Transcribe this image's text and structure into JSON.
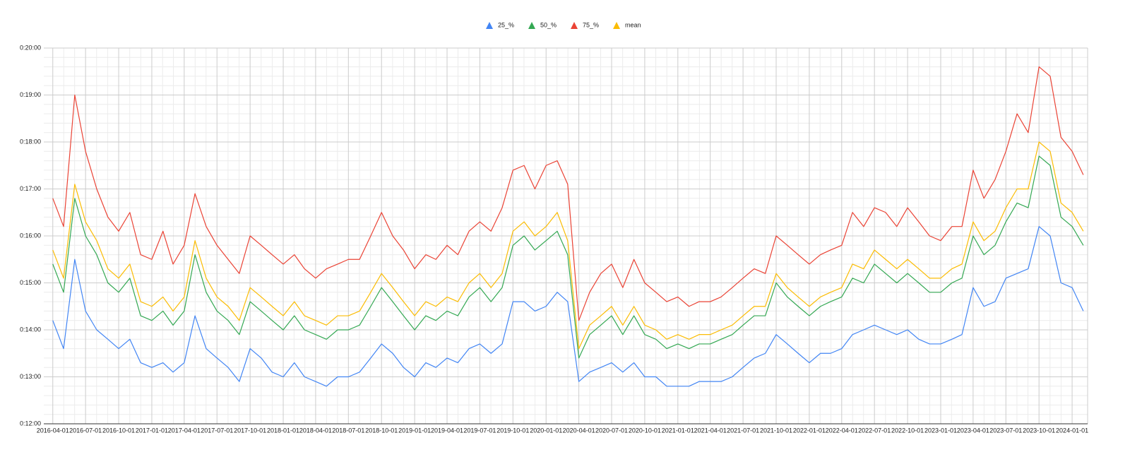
{
  "chart_data": {
    "type": "line",
    "x": [
      "2016-04-01",
      "2016-05-01",
      "2016-06-01",
      "2016-07-01",
      "2016-08-01",
      "2016-09-01",
      "2016-10-01",
      "2016-11-01",
      "2016-12-01",
      "2017-01-01",
      "2017-02-01",
      "2017-03-01",
      "2017-04-01",
      "2017-05-01",
      "2017-06-01",
      "2017-07-01",
      "2017-08-01",
      "2017-09-01",
      "2017-10-01",
      "2017-11-01",
      "2017-12-01",
      "2018-01-01",
      "2018-02-01",
      "2018-03-01",
      "2018-04-01",
      "2018-05-01",
      "2018-06-01",
      "2018-07-01",
      "2018-08-01",
      "2018-09-01",
      "2018-10-01",
      "2018-11-01",
      "2018-12-01",
      "2019-01-01",
      "2019-02-01",
      "2019-03-01",
      "2019-04-01",
      "2019-05-01",
      "2019-06-01",
      "2019-07-01",
      "2019-08-01",
      "2019-09-01",
      "2019-10-01",
      "2019-11-01",
      "2019-12-01",
      "2020-01-01",
      "2020-02-01",
      "2020-03-01",
      "2020-04-01",
      "2020-05-01",
      "2020-06-01",
      "2020-07-01",
      "2020-08-01",
      "2020-09-01",
      "2020-10-01",
      "2020-11-01",
      "2020-12-01",
      "2021-01-01",
      "2021-02-01",
      "2021-03-01",
      "2021-04-01",
      "2021-05-01",
      "2021-06-01",
      "2021-07-01",
      "2021-08-01",
      "2021-09-01",
      "2021-10-01",
      "2021-11-01",
      "2021-12-01",
      "2022-01-01",
      "2022-02-01",
      "2022-03-01",
      "2022-04-01",
      "2022-05-01",
      "2022-06-01",
      "2022-07-01",
      "2022-08-01",
      "2022-09-01",
      "2022-10-01",
      "2022-11-01",
      "2022-12-01",
      "2023-01-01",
      "2023-02-01",
      "2023-03-01",
      "2023-04-01",
      "2023-05-01",
      "2023-06-01",
      "2023-07-01",
      "2023-08-01",
      "2023-09-01",
      "2023-10-01",
      "2023-11-01",
      "2023-12-01",
      "2024-01-01",
      "2024-02-01"
    ],
    "series": [
      {
        "name": "25_%",
        "color": "#4285f4",
        "values": [
          14.2,
          13.6,
          15.5,
          14.4,
          14.0,
          13.8,
          13.6,
          13.8,
          13.3,
          13.2,
          13.3,
          13.1,
          13.3,
          14.3,
          13.6,
          13.4,
          13.2,
          12.9,
          13.6,
          13.4,
          13.1,
          13.0,
          13.3,
          13.0,
          12.9,
          12.8,
          13.0,
          13.0,
          13.1,
          13.4,
          13.7,
          13.5,
          13.2,
          13.0,
          13.3,
          13.2,
          13.4,
          13.3,
          13.6,
          13.7,
          13.5,
          13.7,
          14.6,
          14.6,
          14.4,
          14.5,
          14.8,
          14.6,
          12.9,
          13.1,
          13.2,
          13.3,
          13.1,
          13.3,
          13.0,
          13.0,
          12.8,
          12.8,
          12.8,
          12.9,
          12.9,
          12.9,
          13.0,
          13.2,
          13.4,
          13.5,
          13.9,
          13.7,
          13.5,
          13.3,
          13.5,
          13.5,
          13.6,
          13.9,
          14.0,
          14.1,
          14.0,
          13.9,
          14.0,
          13.8,
          13.7,
          13.7,
          13.8,
          13.9,
          14.9,
          14.5,
          14.6,
          15.1,
          15.2,
          15.3,
          16.2,
          16.0,
          15.0,
          14.9,
          14.4
        ]
      },
      {
        "name": "50_%",
        "color": "#34a853",
        "values": [
          15.4,
          14.8,
          16.8,
          16.0,
          15.6,
          15.0,
          14.8,
          15.1,
          14.3,
          14.2,
          14.4,
          14.1,
          14.4,
          15.6,
          14.8,
          14.4,
          14.2,
          13.9,
          14.6,
          14.4,
          14.2,
          14.0,
          14.3,
          14.0,
          13.9,
          13.8,
          14.0,
          14.0,
          14.1,
          14.5,
          14.9,
          14.6,
          14.3,
          14.0,
          14.3,
          14.2,
          14.4,
          14.3,
          14.7,
          14.9,
          14.6,
          14.9,
          15.8,
          16.0,
          15.7,
          15.9,
          16.1,
          15.6,
          13.4,
          13.9,
          14.1,
          14.3,
          13.9,
          14.3,
          13.9,
          13.8,
          13.6,
          13.7,
          13.6,
          13.7,
          13.7,
          13.8,
          13.9,
          14.1,
          14.3,
          14.3,
          15.0,
          14.7,
          14.5,
          14.3,
          14.5,
          14.6,
          14.7,
          15.1,
          15.0,
          15.4,
          15.2,
          15.0,
          15.2,
          15.0,
          14.8,
          14.8,
          15.0,
          15.1,
          16.0,
          15.6,
          15.8,
          16.3,
          16.7,
          16.6,
          17.7,
          17.5,
          16.4,
          16.2,
          15.8
        ]
      },
      {
        "name": "75_%",
        "color": "#ea4335",
        "values": [
          16.8,
          16.2,
          19.0,
          17.8,
          17.0,
          16.4,
          16.1,
          16.5,
          15.6,
          15.5,
          16.1,
          15.4,
          15.8,
          16.9,
          16.2,
          15.8,
          15.5,
          15.2,
          16.0,
          15.8,
          15.6,
          15.4,
          15.6,
          15.3,
          15.1,
          15.3,
          15.4,
          15.5,
          15.5,
          16.0,
          16.5,
          16.0,
          15.7,
          15.3,
          15.6,
          15.5,
          15.8,
          15.6,
          16.1,
          16.3,
          16.1,
          16.6,
          17.4,
          17.5,
          17.0,
          17.5,
          17.6,
          17.1,
          14.2,
          14.8,
          15.2,
          15.4,
          14.9,
          15.5,
          15.0,
          14.8,
          14.6,
          14.7,
          14.5,
          14.6,
          14.6,
          14.7,
          14.9,
          15.1,
          15.3,
          15.2,
          16.0,
          15.8,
          15.6,
          15.4,
          15.6,
          15.7,
          15.8,
          16.5,
          16.2,
          16.6,
          16.5,
          16.2,
          16.6,
          16.3,
          16.0,
          15.9,
          16.2,
          16.2,
          17.4,
          16.8,
          17.2,
          17.8,
          18.6,
          18.2,
          19.6,
          19.4,
          18.1,
          17.8,
          17.3
        ]
      },
      {
        "name": "mean",
        "color": "#fbbc04",
        "values": [
          15.7,
          15.1,
          17.1,
          16.3,
          15.9,
          15.3,
          15.1,
          15.4,
          14.6,
          14.5,
          14.7,
          14.4,
          14.7,
          15.9,
          15.1,
          14.7,
          14.5,
          14.2,
          14.9,
          14.7,
          14.5,
          14.3,
          14.6,
          14.3,
          14.2,
          14.1,
          14.3,
          14.3,
          14.4,
          14.8,
          15.2,
          14.9,
          14.6,
          14.3,
          14.6,
          14.5,
          14.7,
          14.6,
          15.0,
          15.2,
          14.9,
          15.2,
          16.1,
          16.3,
          16.0,
          16.2,
          16.5,
          15.9,
          13.6,
          14.1,
          14.3,
          14.5,
          14.1,
          14.5,
          14.1,
          14.0,
          13.8,
          13.9,
          13.8,
          13.9,
          13.9,
          14.0,
          14.1,
          14.3,
          14.5,
          14.5,
          15.2,
          14.9,
          14.7,
          14.5,
          14.7,
          14.8,
          14.9,
          15.4,
          15.3,
          15.7,
          15.5,
          15.3,
          15.5,
          15.3,
          15.1,
          15.1,
          15.3,
          15.4,
          16.3,
          15.9,
          16.1,
          16.6,
          17.0,
          17.0,
          18.0,
          17.8,
          16.7,
          16.5,
          16.1
        ]
      }
    ],
    "xlim": [
      "2016-03-07",
      "2024-02-13"
    ],
    "xticks": [
      "2016-04-01",
      "2016-07-01",
      "2016-10-01",
      "2017-01-01",
      "2017-04-01",
      "2017-07-01",
      "2017-10-01",
      "2018-01-01",
      "2018-04-01",
      "2018-07-01",
      "2018-10-01",
      "2019-01-01",
      "2019-04-01",
      "2019-07-01",
      "2019-10-01",
      "2020-01-01",
      "2020-04-01",
      "2020-07-01",
      "2020-10-01",
      "2021-01-01",
      "2021-04-01",
      "2021-07-01",
      "2021-10-01",
      "2022-01-01",
      "2022-04-01",
      "2022-07-01",
      "2022-10-01",
      "2023-01-01",
      "2023-04-01",
      "2023-07-01",
      "2023-10-01",
      "2024-01-01"
    ],
    "ylim": [
      12,
      20
    ],
    "yticks": [
      {
        "value": 12,
        "label": "0:12:00"
      },
      {
        "value": 13,
        "label": "0:13:00"
      },
      {
        "value": 14,
        "label": "0:14:00"
      },
      {
        "value": 15,
        "label": "0:15:00"
      },
      {
        "value": 16,
        "label": "0:16:00"
      },
      {
        "value": 17,
        "label": "0:17:00"
      },
      {
        "value": 18,
        "label": "0:18:00"
      },
      {
        "value": 19,
        "label": "0:19:00"
      },
      {
        "value": 20,
        "label": "0:20:00"
      }
    ],
    "grid": true,
    "legend": "top"
  }
}
